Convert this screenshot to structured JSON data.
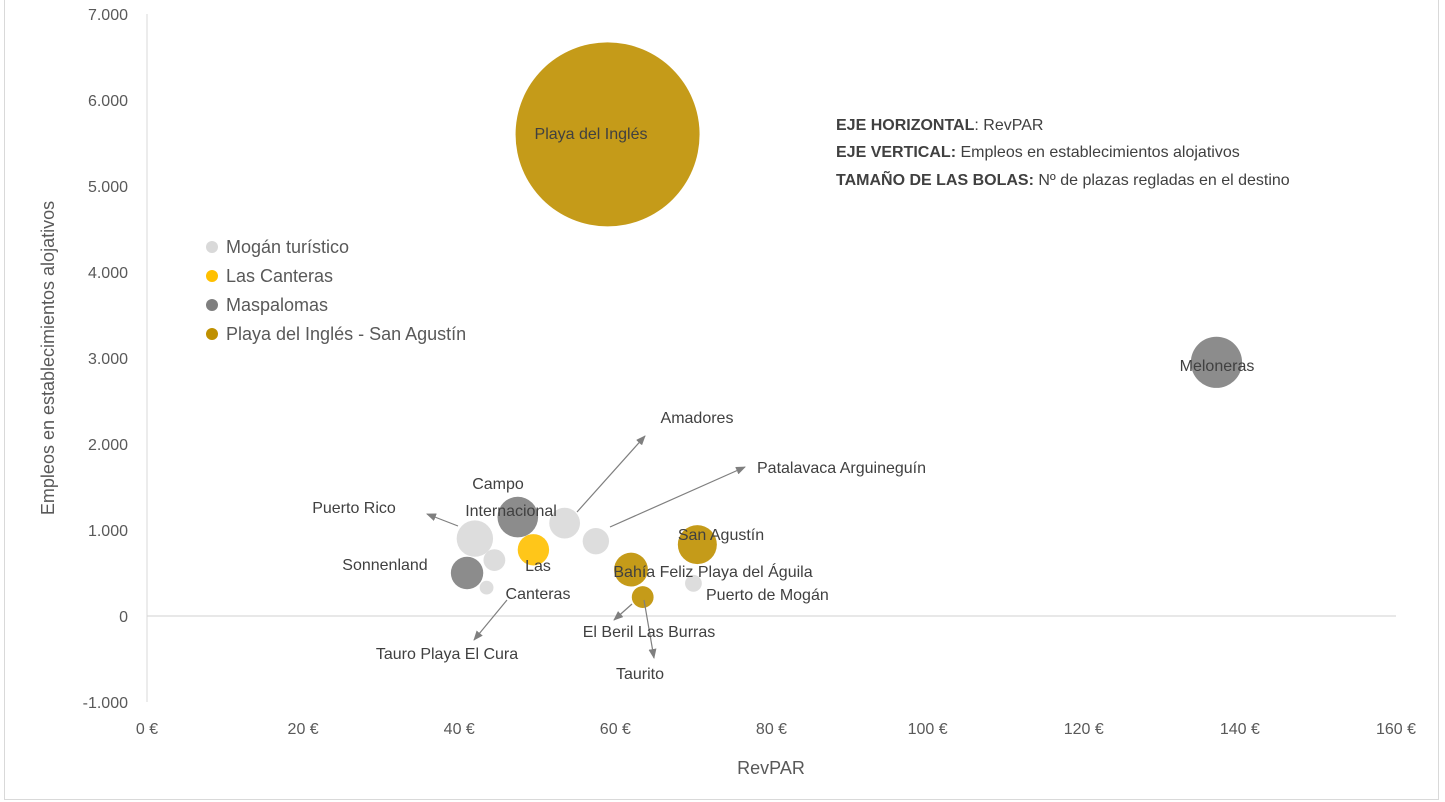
{
  "chart_data": {
    "type": "bubble",
    "xlabel": "RevPAR",
    "ylabel": "Empleos en establecimientos alojativos",
    "xlim": [
      0,
      160
    ],
    "ylim": [
      -1000,
      7000
    ],
    "x_ticks": [
      "0 €",
      "20 €",
      "40 €",
      "60 €",
      "80 €",
      "100 €",
      "120 €",
      "140 €",
      "160 €"
    ],
    "y_ticks": [
      "-1.000",
      "0",
      "1.000",
      "2.000",
      "3.000",
      "4.000",
      "5.000",
      "6.000",
      "7.000"
    ],
    "grid": false,
    "legend_position": "left",
    "series": [
      {
        "name": "Mogán turístico",
        "color": "#d9d9d9",
        "points": [
          {
            "x": 42,
            "y": 900,
            "size": 420,
            "label": "Puerto Rico"
          },
          {
            "x": 53.5,
            "y": 1080,
            "size": 300,
            "label": "Amadores"
          },
          {
            "x": 57.5,
            "y": 870,
            "size": 220,
            "label": "Patalavaca Arguineguín"
          },
          {
            "x": 44.5,
            "y": 650,
            "size": 150,
            "label": "Tauro Playa El Cura"
          },
          {
            "x": 43.5,
            "y": 330,
            "size": 60,
            "label": "Taurito"
          },
          {
            "x": 70,
            "y": 380,
            "size": 90,
            "label": "Puerto de Mogán"
          }
        ]
      },
      {
        "name": "Las Canteras",
        "color": "#ffc000",
        "points": [
          {
            "x": 49.5,
            "y": 770,
            "size": 310,
            "label": "Las Canteras"
          }
        ]
      },
      {
        "name": "Maspalomas",
        "color": "#7f7f7f",
        "points": [
          {
            "x": 47.5,
            "y": 1150,
            "size": 520,
            "label": "Campo Internacional"
          },
          {
            "x": 41,
            "y": 500,
            "size": 330,
            "label": "Sonnenland"
          },
          {
            "x": 137,
            "y": 2950,
            "size": 830,
            "label": "Meloneras"
          }
        ]
      },
      {
        "name": "Playa del Inglés - San Agustín",
        "color": "#bf9000",
        "points": [
          {
            "x": 59,
            "y": 5600,
            "size": 10700,
            "label": "Playa del Inglés"
          },
          {
            "x": 70.5,
            "y": 830,
            "size": 480,
            "label": "San Agustín"
          },
          {
            "x": 62,
            "y": 540,
            "size": 360,
            "label": "Bahía Feliz Playa del Águila"
          },
          {
            "x": 63.5,
            "y": 220,
            "size": 150,
            "label": "El Beril Las Burras"
          }
        ]
      }
    ],
    "annotations": {
      "line1_bold": "EJE HORIZONTAL",
      "line1_rest": ": RevPAR",
      "line2_bold": "EJE VERTICAL:",
      "line2_rest": " Empleos en establecimientos alojativos",
      "line3_bold": "TAMAÑO DE LAS BOLAS:",
      "line3_rest": " Nº de plazas regladas en el destino"
    },
    "labels": {
      "playa_ingles": "Playa del Inglés",
      "meloneras": "Meloneras",
      "amadores": "Amadores",
      "patalavaca": "Patalavaca Arguineguín",
      "campo_1": "Campo",
      "campo_2": "Internacional",
      "puerto_rico": "Puerto Rico",
      "san_agustin": "San Agustín",
      "sonnenland": "Sonnenland",
      "las_canteras_1": "Las",
      "las_canteras_2": "Canteras",
      "bahia_feliz": "Bahía Feliz Playa del Águila",
      "puerto_mogan": "Puerto de Mogán",
      "el_beril": "El Beril Las Burras",
      "tauro": "Tauro Playa El Cura",
      "taurito": "Taurito"
    }
  }
}
